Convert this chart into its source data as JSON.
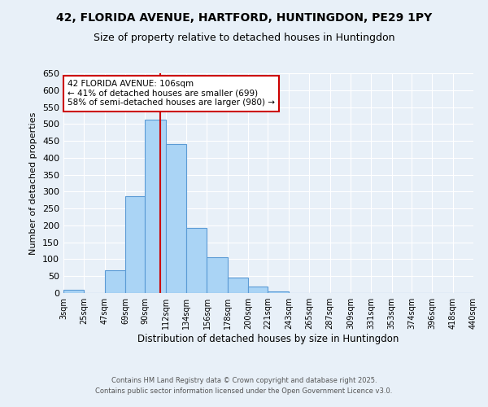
{
  "title": "42, FLORIDA AVENUE, HARTFORD, HUNTINGDON, PE29 1PY",
  "subtitle": "Size of property relative to detached houses in Huntingdon",
  "xlabel": "Distribution of detached houses by size in Huntingdon",
  "ylabel": "Number of detached properties",
  "bar_values": [
    10,
    0,
    67,
    287,
    513,
    440,
    192,
    105,
    46,
    20,
    5,
    0,
    0,
    0,
    0,
    0,
    0,
    0,
    0,
    0
  ],
  "bin_edges": [
    3,
    25,
    47,
    69,
    90,
    112,
    134,
    156,
    178,
    200,
    221,
    243,
    265,
    287,
    309,
    331,
    353,
    374,
    396,
    418,
    440
  ],
  "tick_labels": [
    "3sqm",
    "25sqm",
    "47sqm",
    "69sqm",
    "90sqm",
    "112sqm",
    "134sqm",
    "156sqm",
    "178sqm",
    "200sqm",
    "221sqm",
    "243sqm",
    "265sqm",
    "287sqm",
    "309sqm",
    "331sqm",
    "353sqm",
    "374sqm",
    "396sqm",
    "418sqm",
    "440sqm"
  ],
  "bar_color": "#aad4f5",
  "bar_edge_color": "#5b9bd5",
  "vline_x": 106,
  "vline_color": "#cc0000",
  "ylim": [
    0,
    650
  ],
  "yticks": [
    0,
    50,
    100,
    150,
    200,
    250,
    300,
    350,
    400,
    450,
    500,
    550,
    600,
    650
  ],
  "annotation_title": "42 FLORIDA AVENUE: 106sqm",
  "annotation_line1": "← 41% of detached houses are smaller (699)",
  "annotation_line2": "58% of semi-detached houses are larger (980) →",
  "annotation_box_color": "#ffffff",
  "annotation_box_edge": "#cc0000",
  "bg_color": "#e8f0f8",
  "grid_color": "#ffffff",
  "footer1": "Contains HM Land Registry data © Crown copyright and database right 2025.",
  "footer2": "Contains public sector information licensed under the Open Government Licence v3.0.",
  "title_fontsize": 10,
  "subtitle_fontsize": 9
}
